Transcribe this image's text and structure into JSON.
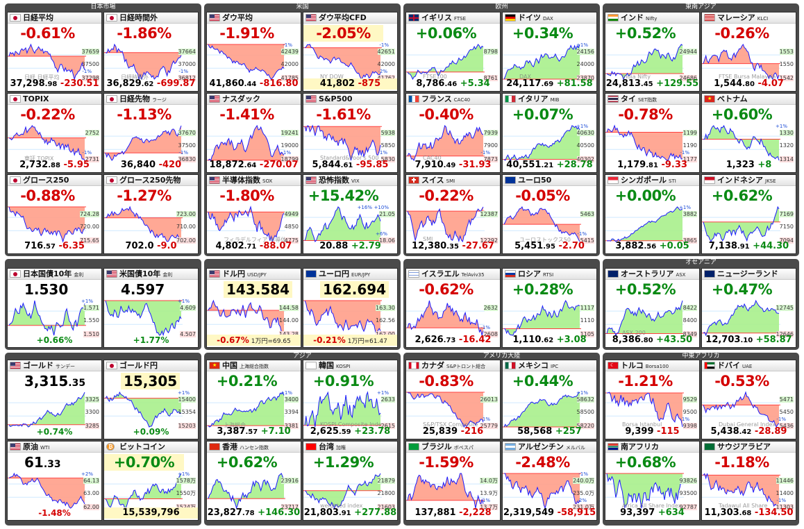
{
  "groups": [
    {
      "title": "日本市場"
    },
    {
      "title": "米国"
    },
    {
      "title": "欧州"
    },
    {
      "title": "東南アジア"
    },
    {
      "title": "オセアニア"
    },
    {
      "title": "アジア"
    },
    {
      "title": "アメリカ大陸"
    },
    {
      "title": "中東アフリカ"
    }
  ],
  "tiles": [
    {
      "name": "日経平均",
      "sub": "",
      "flag": "jp",
      "change": "-0.61%",
      "dir": "dn",
      "hi": "37659",
      "mid": "37500",
      "lo": "37298",
      "pct_hi": "",
      "pct_lo": "-1%",
      "price": "37,298",
      "price_dec": ".98",
      "diff": "-230.51",
      "wm": "日経 日経平均"
    },
    {
      "name": "日経時間外",
      "sub": "",
      "flag": "jp",
      "change": "-1.86%",
      "dir": "dn",
      "hi": "37664",
      "mid": "37000",
      "lo": "36812",
      "pct_hi": "",
      "pct_lo": "-1%",
      "price": "36,829",
      "price_dec": ".62",
      "diff": "-699.87",
      "wm": "日経時間外"
    },
    {
      "name": "ダウ平均",
      "sub": "",
      "flag": "us",
      "change": "-1.91%",
      "dir": "dn",
      "hi": "42439",
      "mid": "42000",
      "lo": "41785",
      "pct_hi": "-1%",
      "pct_lo": "",
      "price": "41,860",
      "price_dec": ".44",
      "diff": "-816.80",
      "wm": ""
    },
    {
      "name": "ダウ平均CFD",
      "sub": "",
      "flag": "us",
      "change": "-2.05%",
      "dir": "dn",
      "hi": "42651",
      "mid": "42000",
      "lo": "41762",
      "pct_hi": "-1%",
      "pct_lo": "-2%",
      "price": "41,802",
      "price_dec": "",
      "diff": "-875",
      "wm": "NY DOW",
      "yellow": true
    },
    {
      "name": "イギリス",
      "sub": "FTSE",
      "flag": "gb",
      "change": "+0.06%",
      "dir": "up",
      "hi": "8798",
      "mid": "",
      "lo": "8761",
      "pct_hi": "",
      "pct_lo": "",
      "price": "8,786",
      "price_dec": ".46",
      "diff": "+5.34",
      "wm": "FTSE100"
    },
    {
      "name": "ドイツ",
      "sub": "DAX",
      "flag": "de",
      "change": "+0.34%",
      "dir": "up",
      "hi": "24156",
      "mid": "24000",
      "lo": "23870",
      "pct_hi": "+1%",
      "pct_lo": "",
      "price": "24,117",
      "price_dec": ".69",
      "diff": "+81.58",
      "wm": "DAX"
    },
    {
      "name": "インド",
      "sub": "Nifty",
      "flag": "in",
      "change": "+0.52%",
      "dir": "up",
      "hi": "24944",
      "mid": "",
      "lo": "24686",
      "pct_hi": "",
      "pct_lo": "",
      "price": "24,813",
      "price_dec": ".45",
      "diff": "+129.55",
      "wm": "India Nifty"
    },
    {
      "name": "マレーシア",
      "sub": "KLCI",
      "flag": "my",
      "change": "-0.26%",
      "dir": "dn",
      "hi": "1553",
      "mid": "1550",
      "lo": "1542",
      "pct_hi": "",
      "pct_lo": "",
      "price": "1,544",
      "price_dec": ".80",
      "diff": "-4.07",
      "wm": "FTSE Bursa Malaysia"
    },
    {
      "name": "TOPIX",
      "sub": "",
      "flag": "jp",
      "change": "-0.22%",
      "dir": "dn",
      "hi": "2752",
      "mid": "",
      "lo": "2731",
      "pct_hi": "",
      "pct_lo": "-1%",
      "price": "2,732",
      "price_dec": ".88",
      "diff": "-5.95",
      "wm": "東証 TOPIX"
    },
    {
      "name": "日経先物",
      "sub": "ラージ",
      "flag": "jp",
      "change": "-1.13%",
      "dir": "dn",
      "hi": "37670",
      "mid": "37500",
      "lo": "36830",
      "pct_hi": "",
      "pct_lo": "-1%",
      "price": "36,840",
      "price_dec": "",
      "diff": "-420",
      "wm": ""
    },
    {
      "name": "ナスダック",
      "sub": "",
      "flag": "us",
      "change": "-1.41%",
      "dir": "dn",
      "hi": "19241",
      "mid": "19000",
      "lo": "18799",
      "pct_hi": "",
      "pct_lo": "-1%",
      "price": "18,872",
      "price_dec": ".64",
      "diff": "-270.07",
      "wm": ""
    },
    {
      "name": "S&P500",
      "sub": "",
      "flag": "us",
      "change": "-1.61%",
      "dir": "dn",
      "hi": "5938",
      "mid": "5850",
      "lo": "5830",
      "pct_hi": "",
      "pct_lo": "-1%",
      "price": "5,844",
      "price_dec": ".61",
      "diff": "-95.85",
      "wm": "Standard&Poor's 500"
    },
    {
      "name": "フランス",
      "sub": "CAC40",
      "flag": "fr",
      "change": "-0.40%",
      "dir": "dn",
      "hi": "7939",
      "mid": "7900",
      "lo": "7873",
      "pct_hi": "",
      "pct_lo": "-1%",
      "price": "7,910",
      "price_dec": ".49",
      "diff": "-31.93",
      "wm": "CAC40"
    },
    {
      "name": "イタリア",
      "sub": "MIB",
      "flag": "it",
      "change": "+0.07%",
      "dir": "up",
      "hi": "40630",
      "mid": "40500",
      "lo": "40302",
      "pct_hi": "+1%",
      "pct_lo": "",
      "price": "40,551",
      "price_dec": ".21",
      "diff": "+28.78",
      "wm": ""
    },
    {
      "name": "タイ",
      "sub": "SET指数",
      "flag": "th",
      "change": "-0.78%",
      "dir": "dn",
      "hi": "1199",
      "mid": "1190",
      "lo": "1177",
      "pct_hi": "",
      "pct_lo": "-1%",
      "price": "1,179",
      "price_dec": ".81",
      "diff": "-9.33",
      "wm": ""
    },
    {
      "name": "ベトナム",
      "sub": "",
      "flag": "vn",
      "change": "+0.60%",
      "dir": "up",
      "hi": "1330",
      "mid": "1320",
      "lo": "1314",
      "pct_hi": "+1%",
      "pct_lo": "",
      "price": "1,323",
      "price_dec": "",
      "diff": "+8",
      "wm": ""
    },
    {
      "name": "グロース250",
      "sub": "",
      "flag": "jp",
      "change": "-0.88%",
      "dir": "dn",
      "hi": "724.28",
      "mid": "720.00",
      "lo": "715.65",
      "pct_hi": "",
      "pct_lo": "",
      "price": "716",
      "price_dec": ".57",
      "diff": "-6.35",
      "wm": ""
    },
    {
      "name": "グロース250先物",
      "sub": "",
      "flag": "jp",
      "change": "-1.27%",
      "dir": "dn",
      "hi": "723.00",
      "mid": "710.00",
      "lo": "702.00",
      "pct_hi": "",
      "pct_lo": "",
      "price": "702.0",
      "price_dec": "",
      "diff": "-9.0",
      "wm": ""
    },
    {
      "name": "半導体指数",
      "sub": "SOX",
      "flag": "us",
      "change": "-1.80%",
      "dir": "dn",
      "hi": "4949",
      "mid": "4850",
      "lo": "4775",
      "pct_hi": "",
      "pct_lo": "",
      "price": "4,802",
      "price_dec": ".71",
      "diff": "-88.07",
      "wm": "フィラデルフィア 半導体"
    },
    {
      "name": "恐怖指数",
      "sub": "VIX",
      "flag": "us",
      "change": "+15.42%",
      "dir": "up",
      "hi": "21.05",
      "mid": "",
      "lo": "18.06",
      "pct_hi": "+10%",
      "pct_lo": "+6%",
      "price": "20.88",
      "price_dec": "",
      "diff": "+2.79",
      "wm": "",
      "extra": "+16%"
    },
    {
      "name": "スイス",
      "sub": "SMI",
      "flag": "ch",
      "change": "-0.22%",
      "dir": "dn",
      "hi": "12387",
      "mid": "",
      "lo": "12292",
      "pct_hi": "",
      "pct_lo": "",
      "price": "12,380",
      "price_dec": ".35",
      "diff": "-27.67",
      "wm": "SMI"
    },
    {
      "name": "ユーロ50",
      "sub": "",
      "flag": "eu",
      "change": "-0.05%",
      "dir": "dn",
      "hi": "5463",
      "mid": "",
      "lo": "5415",
      "pct_hi": "",
      "pct_lo": "-1%",
      "price": "5,451",
      "price_dec": ".95",
      "diff": "-2.70",
      "wm": "ユーロストックス50"
    },
    {
      "name": "シンガポール",
      "sub": "STI",
      "flag": "sg",
      "change": "+0.00%",
      "dir": "up",
      "hi": "3882",
      "mid": "",
      "lo": "3865",
      "pct_hi": "+1%",
      "pct_lo": "",
      "price": "3,882",
      "price_dec": ".56",
      "diff": "+0.05",
      "wm": ""
    },
    {
      "name": "インドネシア",
      "sub": "JKSE",
      "flag": "id",
      "change": "+0.62%",
      "dir": "up",
      "hi": "7169",
      "mid": "7150",
      "lo": "7094",
      "pct_hi": "",
      "pct_lo": "",
      "price": "7,138",
      "price_dec": ".91",
      "diff": "+44.30",
      "wm": ""
    },
    {
      "name": "日本国債10年",
      "sub": "金利",
      "flag": "jp",
      "big": "1.530",
      "hi": "1.571",
      "mid": "1.550",
      "lo": "1.510",
      "pct_hi": "+1%",
      "bottomchg": "+0.66%",
      "dir": "up"
    },
    {
      "name": "米国債10年",
      "sub": "金利",
      "flag": "us",
      "big": "4.597",
      "hi": "4.609",
      "mid": "",
      "lo": "4.507",
      "pct_hi": "+1%",
      "bottomchg": "+1.77%",
      "dir": "up"
    },
    {
      "name": "ドル円",
      "sub": "USD/JPY",
      "flag": "us",
      "big": "143.584",
      "hi": "144.58",
      "mid": "144.00",
      "lo": "143.28",
      "pct_hi": "",
      "bottomchg": "-0.67%",
      "bottomsub": "1万円=69.65",
      "dir": "dn",
      "yellow": true
    },
    {
      "name": "ユーロ円",
      "sub": "EUR/JPY",
      "flag": "eu",
      "big": "162.694",
      "hi": "163.30",
      "mid": "162.56",
      "lo": "162.00",
      "pct_hi": "",
      "bottomchg": "-0.21%",
      "bottomsub": "1万円=61.47",
      "dir": "dn",
      "yellow": true
    },
    {
      "name": "イスラエル",
      "sub": "TelAviv35",
      "flag": "il",
      "change": "-0.62%",
      "dir": "dn",
      "hi": "2632",
      "mid": "",
      "lo": "2608",
      "pct_hi": "",
      "pct_lo": "-1%",
      "price": "2,626",
      "price_dec": ".73",
      "diff": "-16.42",
      "wm": ""
    },
    {
      "name": "ロシア",
      "sub": "RTSI",
      "flag": "ru",
      "change": "+0.28%",
      "dir": "up",
      "hi": "1117",
      "mid": "1110",
      "lo": "1105",
      "pct_hi": "",
      "pct_lo": "",
      "price": "1,110",
      "price_dec": ".62",
      "diff": "+3.08",
      "wm": ""
    },
    {
      "name": "オーストラリア",
      "sub": "ASX",
      "flag": "au",
      "change": "+0.52%",
      "dir": "up",
      "hi": "8422",
      "mid": "8400",
      "lo": "8349",
      "pct_hi": "",
      "pct_lo": "",
      "price": "8,386",
      "price_dec": ".80",
      "diff": "+43.50",
      "wm": "ASX 200"
    },
    {
      "name": "ニュージーランド",
      "sub": "",
      "flag": "nz",
      "change": "+0.47%",
      "dir": "up",
      "hi": "12745",
      "mid": "",
      "lo": "12646",
      "pct_hi": "",
      "pct_lo": "",
      "price": "12,703",
      "price_dec": ".10",
      "diff": "+58.87",
      "wm": ""
    },
    {
      "name": "ゴールド",
      "sub": "サンデー",
      "flag": "us",
      "big": "3,315",
      "bigdec": ".35",
      "hi": "3325",
      "mid": "3300",
      "lo": "3285",
      "pct_hi": "",
      "bottomchg": "+0.74%",
      "dir": "up"
    },
    {
      "name": "ゴールド円",
      "sub": "",
      "flag": "jp",
      "big": "15,305",
      "hi": "15400",
      "mid": "15354",
      "lo": "15203",
      "pct_hi": "+1%",
      "bottomchg": "+0.09%",
      "dir": "up",
      "yellow": true
    },
    {
      "name": "中国",
      "sub": "上海総合指数",
      "flag": "cn",
      "change": "+0.21%",
      "dir": "up",
      "hi": "3400",
      "mid": "3394",
      "lo": "3381",
      "pct_hi": "+1%",
      "pct_lo": "",
      "price": "3,387",
      "price_dec": ".57",
      "diff": "+7.10",
      "wm": "上海総合"
    },
    {
      "name": "韓国",
      "sub": "KOSPI",
      "flag": "kr",
      "change": "+0.91%",
      "dir": "up",
      "hi": "2633",
      "mid": "",
      "lo": "2615",
      "pct_hi": "+1%",
      "pct_lo": "",
      "price": "2,625",
      "price_dec": ".59",
      "diff": "+23.78",
      "wm": "KOSPI Composite Index"
    },
    {
      "name": "カナダ",
      "sub": "S&Pトロント総合",
      "flag": "ca",
      "change": "-0.83%",
      "dir": "dn",
      "hi": "26013",
      "mid": "",
      "lo": "25779",
      "pct_hi": "",
      "pct_lo": "-1%",
      "price": "25,839",
      "price_dec": "",
      "diff": "-216",
      "wm": "S&P/TSX Composite"
    },
    {
      "name": "メキシコ",
      "sub": "IPC",
      "flag": "mx",
      "change": "+0.44%",
      "dir": "up",
      "hi": "58632",
      "mid": "58500",
      "lo": "58220",
      "pct_hi": "+1%",
      "pct_lo": "",
      "price": "58,568",
      "price_dec": "",
      "diff": "+257",
      "wm": ""
    },
    {
      "name": "トルコ",
      "sub": "Borsa100",
      "flag": "tr",
      "change": "-1.21%",
      "dir": "dn",
      "hi": "9529",
      "mid": "9500",
      "lo": "9398",
      "pct_hi": "",
      "pct_lo": "-1%",
      "price": "9,399",
      "price_dec": "",
      "diff": "-115",
      "wm": "Borsa Istanbul"
    },
    {
      "name": "ドバイ",
      "sub": "UAE",
      "flag": "ae",
      "change": "-0.53%",
      "dir": "dn",
      "hi": "5471",
      "mid": "5450",
      "lo": "5436",
      "pct_hi": "",
      "pct_lo": "-1%",
      "price": "5,438",
      "price_dec": ".42",
      "diff": "-28.89",
      "wm": "Dubai General Index"
    },
    {
      "name": "原油",
      "sub": "WTI",
      "flag": "us",
      "big": "61",
      "bigdec": ".33",
      "hi": "64.13",
      "mid": "63.00",
      "lo": "62.00",
      "pct_hi": "+2%",
      "bottomchg": "-1.48%",
      "dir": "dn"
    },
    {
      "name": "ビットコイン",
      "sub": "",
      "flag": "btc",
      "change": "+0.70%",
      "dir": "up",
      "hi": "1578万",
      "mid": "1550万",
      "lo": "1524万",
      "pct_hi": "+1%",
      "pct_lo": "",
      "price": "15,539,796",
      "price_dec": "",
      "diff": "",
      "wm": "",
      "yellow": true
    },
    {
      "name": "香港",
      "sub": "ハンセン指数",
      "flag": "hk",
      "change": "+0.62%",
      "dir": "up",
      "hi": "23916",
      "mid": "",
      "lo": "23717",
      "pct_hi": "",
      "pct_lo": "",
      "price": "23,827",
      "price_dec": ".78",
      "diff": "+146.30",
      "wm": ""
    },
    {
      "name": "台湾",
      "sub": "加権",
      "flag": "tw",
      "change": "+1.29%",
      "dir": "up",
      "hi": "21879",
      "mid": "21800",
      "lo": "21603",
      "pct_hi": "",
      "pct_lo": "",
      "price": "21,803",
      "price_dec": ".91",
      "diff": "+277.88",
      "wm": "weighted index"
    },
    {
      "name": "ブラジル",
      "sub": "ボベスパ",
      "flag": "br",
      "change": "-1.59%",
      "dir": "dn",
      "hi": "14.0万",
      "mid": "13.9万",
      "lo": "13.7万",
      "pct_hi": "",
      "pct_lo": "-1%",
      "price": "137,881",
      "price_dec": "",
      "diff": "-2,228",
      "wm": ""
    },
    {
      "name": "アルゼンチン",
      "sub": "メルバル",
      "flag": "ar",
      "change": "-2.48%",
      "dir": "dn",
      "hi": "240.0万",
      "mid": "235.0万",
      "lo": "231.0万",
      "pct_hi": "-1%",
      "pct_lo": "-2%",
      "price": "2,319,549",
      "price_dec": "",
      "diff": "-58,915",
      "wm": ""
    },
    {
      "name": "南アフリカ",
      "sub": "",
      "flag": "za",
      "change": "+0.68%",
      "dir": "up",
      "hi": "93826",
      "mid": "93500",
      "lo": "92787",
      "pct_hi": "",
      "pct_lo": "",
      "price": "93,397",
      "price_dec": "",
      "diff": "+634",
      "wm": "Africa All Share Index"
    },
    {
      "name": "サウジアラビア",
      "sub": "",
      "flag": "sa",
      "change": "-1.18%",
      "dir": "dn",
      "hi": "11446",
      "mid": "11400",
      "lo": "11303",
      "pct_hi": "",
      "pct_lo": "-1%",
      "price": "11,303",
      "price_dec": ".68",
      "diff": "-134.50",
      "wm": "Tadawul All Share"
    }
  ],
  "colors": {
    "up": "#0a8a14",
    "down": "#d40000",
    "fill_up": "#a8f08c",
    "fill_down": "#ff9e8a",
    "line": "#1a1aff",
    "frame": "#4a4a4a"
  }
}
